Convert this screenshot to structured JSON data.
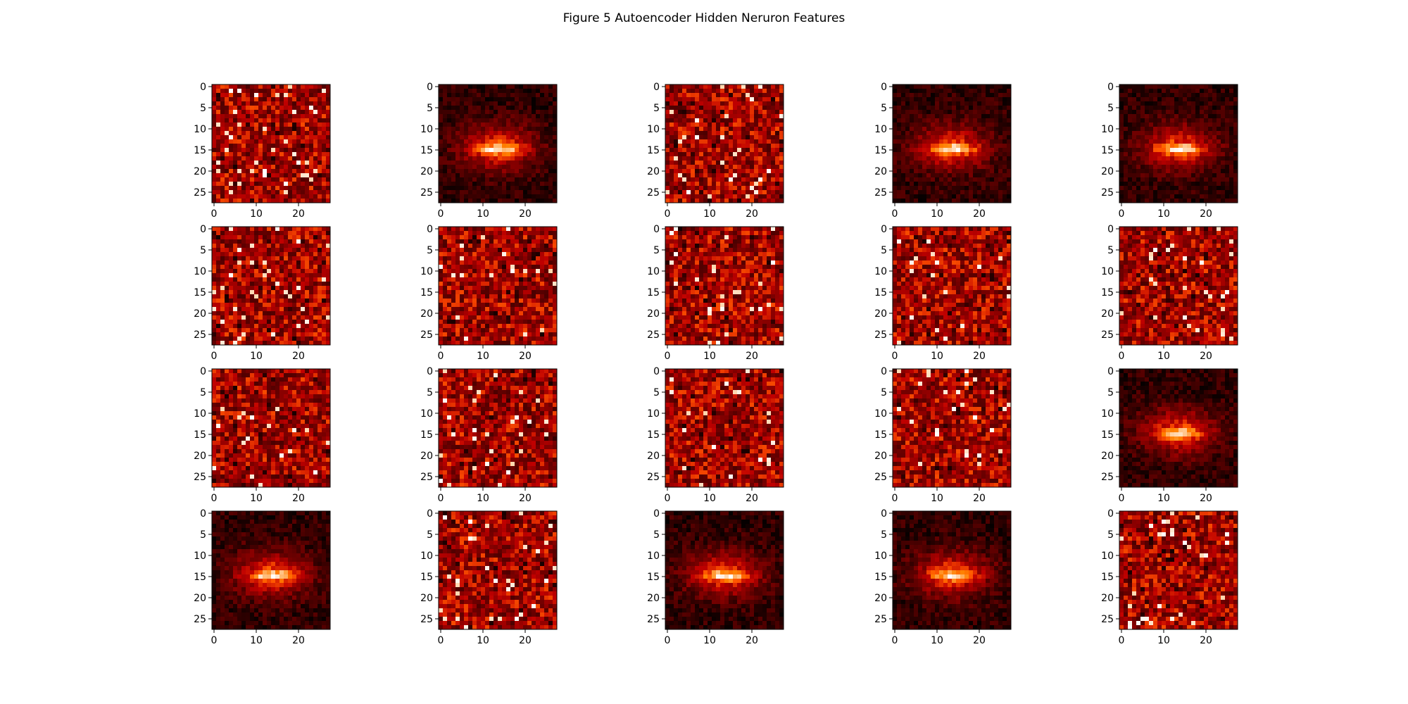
{
  "figure": {
    "title": "Figure 5 Autoencoder Hidden Neruron Features",
    "colors": {
      "colormap": "gist_heat",
      "background": "#ffffff",
      "axes": "#000000"
    }
  },
  "chart_data": {
    "type": "heatmap",
    "title": "Figure 5 Autoencoder Hidden Neruron Features",
    "grid": false,
    "layout": {
      "rows": 4,
      "cols": 5
    },
    "image_size": [
      28,
      28
    ],
    "xlabel": "",
    "ylabel": "",
    "xlim": [
      -0.5,
      27.5
    ],
    "ylim": [
      27.5,
      -0.5
    ],
    "x_ticks": [
      0,
      10,
      20
    ],
    "y_ticks": [
      0,
      5,
      10,
      15,
      20,
      25
    ],
    "panels": [
      {
        "row": 0,
        "col": 0,
        "pattern": "noisy"
      },
      {
        "row": 0,
        "col": 1,
        "pattern": "centered-blob"
      },
      {
        "row": 0,
        "col": 2,
        "pattern": "noisy"
      },
      {
        "row": 0,
        "col": 3,
        "pattern": "centered-blob"
      },
      {
        "row": 0,
        "col": 4,
        "pattern": "centered-blob"
      },
      {
        "row": 1,
        "col": 0,
        "pattern": "noisy"
      },
      {
        "row": 1,
        "col": 1,
        "pattern": "noisy"
      },
      {
        "row": 1,
        "col": 2,
        "pattern": "noisy"
      },
      {
        "row": 1,
        "col": 3,
        "pattern": "noisy"
      },
      {
        "row": 1,
        "col": 4,
        "pattern": "noisy"
      },
      {
        "row": 2,
        "col": 0,
        "pattern": "noisy"
      },
      {
        "row": 2,
        "col": 1,
        "pattern": "noisy"
      },
      {
        "row": 2,
        "col": 2,
        "pattern": "noisy"
      },
      {
        "row": 2,
        "col": 3,
        "pattern": "noisy"
      },
      {
        "row": 2,
        "col": 4,
        "pattern": "centered-blob"
      },
      {
        "row": 3,
        "col": 0,
        "pattern": "centered-blob"
      },
      {
        "row": 3,
        "col": 1,
        "pattern": "noisy"
      },
      {
        "row": 3,
        "col": 2,
        "pattern": "centered-blob"
      },
      {
        "row": 3,
        "col": 3,
        "pattern": "centered-blob"
      },
      {
        "row": 3,
        "col": 4,
        "pattern": "noisy"
      }
    ]
  }
}
